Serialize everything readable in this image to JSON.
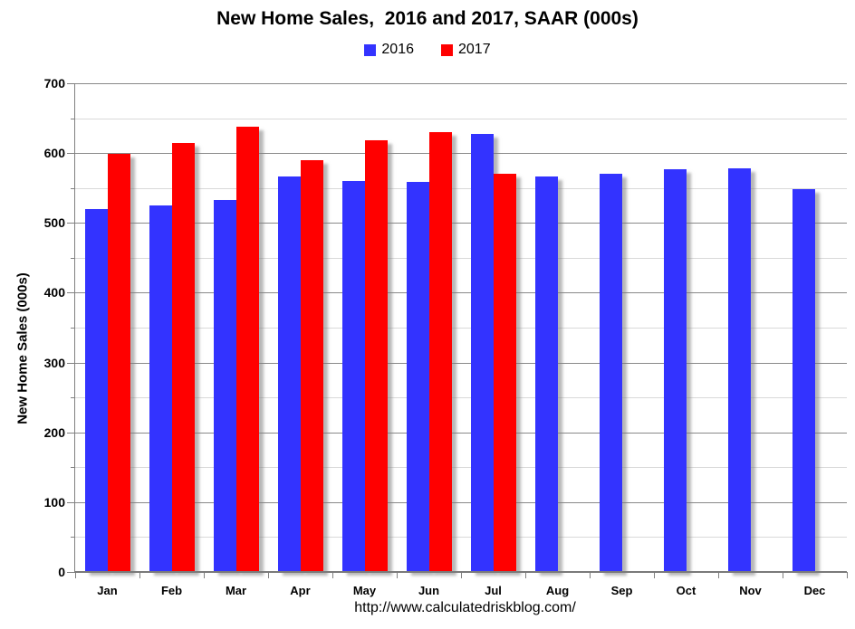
{
  "title": "New Home Sales,  2016 and 2017, SAAR (000s)",
  "footer": {
    "url": "http://www.calculatedriskblog.com/"
  },
  "chart_data": {
    "type": "bar",
    "title": "New Home Sales,  2016 and 2017, SAAR (000s)",
    "categories": [
      "Jan",
      "Feb",
      "Mar",
      "Apr",
      "May",
      "Jun",
      "Jul",
      "Aug",
      "Sep",
      "Oct",
      "Nov",
      "Dec"
    ],
    "series": [
      {
        "name": "2016",
        "color": "#3333FF",
        "values": [
          520,
          525,
          533,
          566,
          560,
          559,
          627,
          567,
          570,
          577,
          578,
          548
        ]
      },
      {
        "name": "2017",
        "color": "#FF0000",
        "values": [
          599,
          614,
          638,
          590,
          618,
          630,
          571,
          null,
          null,
          null,
          null,
          null
        ]
      }
    ],
    "xlabel": "",
    "ylabel": "New Home Sales (000s)",
    "ylim": [
      0,
      700
    ],
    "ytick_step": 100,
    "yminor_step": 50,
    "grid": true,
    "legend_position": "top",
    "bar_colors_note": {
      "major_gridline": "#898989",
      "minor_gridline": "#D9D9D9",
      "axis": "#808080",
      "text": "#000000",
      "background": "#FFFFFF"
    }
  }
}
